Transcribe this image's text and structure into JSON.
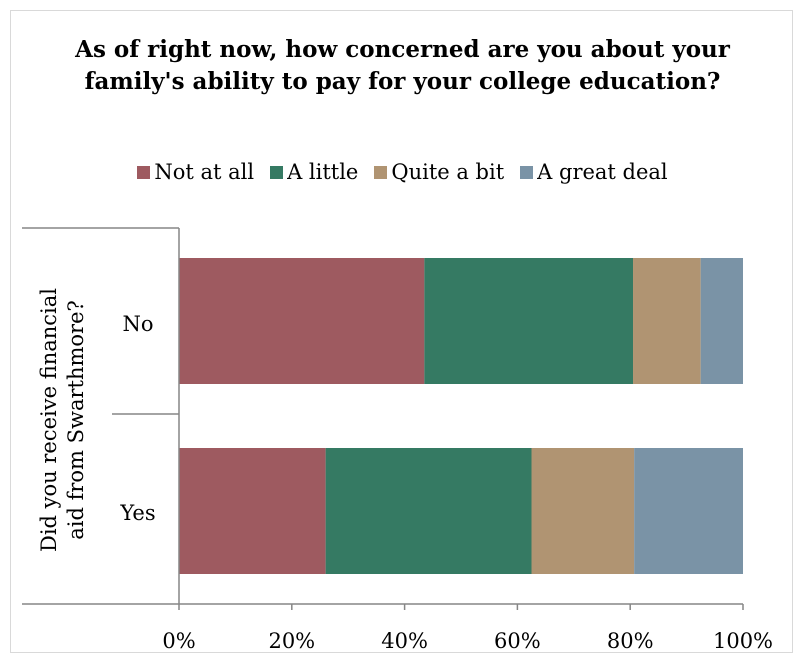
{
  "chart_data": {
    "type": "bar",
    "orientation": "horizontal",
    "stacked": "percent",
    "title": "As of right now, how concerned are you about your family's ability to pay for your college education?",
    "ylabel": "Did you receive financial aid from Swarthmore?",
    "xlabel": "",
    "categories": [
      "No",
      "Yes"
    ],
    "series": [
      {
        "name": "Not at all",
        "values": [
          43.5,
          26
        ],
        "color": "#9e5a60"
      },
      {
        "name": "A little",
        "values": [
          37,
          36.5
        ],
        "color": "#357a63"
      },
      {
        "name": "Quite a bit",
        "values": [
          12,
          18.2
        ],
        "color": "#b09472"
      },
      {
        "name": "A great deal",
        "values": [
          7.5,
          19.3
        ],
        "color": "#7a93a6"
      }
    ],
    "x_ticks": [
      "0%",
      "20%",
      "40%",
      "60%",
      "80%",
      "100%"
    ],
    "xlim": [
      0,
      100
    ],
    "grid": false,
    "legend_position": "top"
  }
}
